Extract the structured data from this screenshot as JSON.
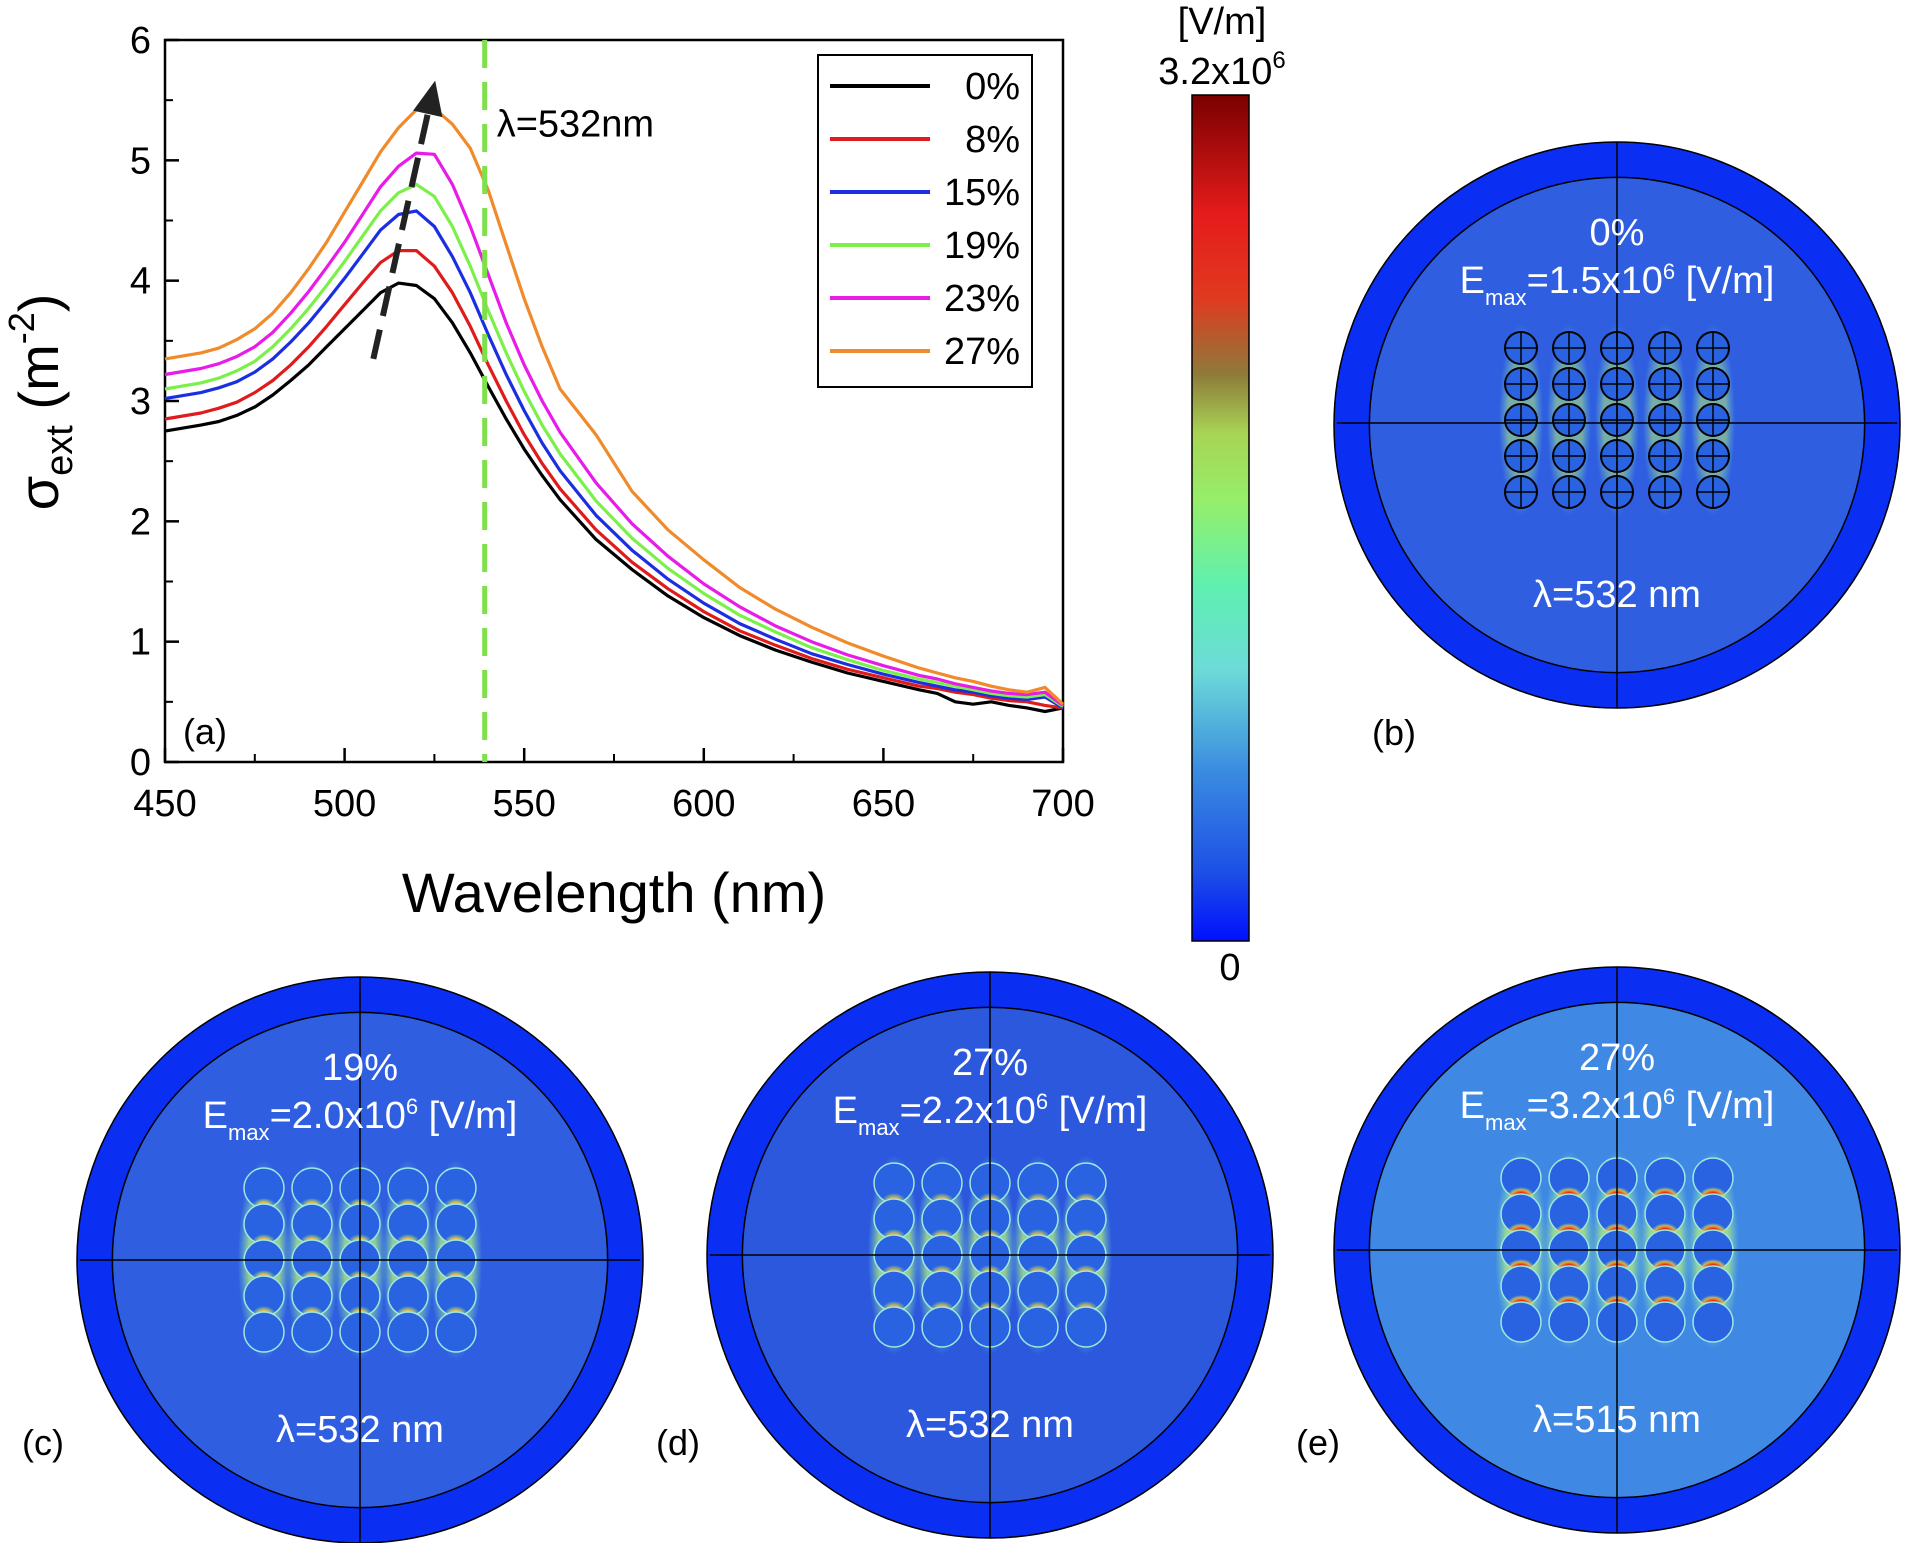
{
  "chart_data": {
    "type": "line",
    "title": "",
    "xlabel": "Wavelength (nm)",
    "ylabel": {
      "base": "σ",
      "sub": "ext",
      "unit_pre": " (m",
      "unit_sup": "-2",
      "unit_post": ")"
    },
    "xlim": [
      450,
      700
    ],
    "ylim": [
      0,
      6
    ],
    "xticks": [
      "450",
      "500",
      "550",
      "600",
      "650",
      "700"
    ],
    "yticks": [
      "0",
      "1",
      "2",
      "3",
      "4",
      "5",
      "6"
    ],
    "x": [
      450,
      460,
      465,
      470,
      475,
      480,
      485,
      490,
      495,
      500,
      505,
      510,
      515,
      520,
      525,
      530,
      535,
      540,
      545,
      550,
      555,
      560,
      570,
      580,
      590,
      600,
      610,
      620,
      630,
      640,
      650,
      660,
      665,
      670,
      675,
      680,
      685,
      690,
      695,
      700
    ],
    "series": [
      {
        "name": "0%",
        "color": "#000000",
        "values": [
          2.75,
          2.8,
          2.83,
          2.88,
          2.95,
          3.05,
          3.17,
          3.3,
          3.45,
          3.6,
          3.75,
          3.9,
          3.98,
          3.96,
          3.85,
          3.65,
          3.4,
          3.12,
          2.85,
          2.6,
          2.38,
          2.18,
          1.85,
          1.6,
          1.38,
          1.2,
          1.05,
          0.93,
          0.83,
          0.74,
          0.67,
          0.6,
          0.57,
          0.5,
          0.48,
          0.5,
          0.47,
          0.45,
          0.42,
          0.45
        ]
      },
      {
        "name": "8%",
        "color": "#e01b1b",
        "values": [
          2.85,
          2.9,
          2.94,
          2.99,
          3.07,
          3.17,
          3.3,
          3.45,
          3.62,
          3.8,
          3.98,
          4.15,
          4.25,
          4.25,
          4.12,
          3.9,
          3.62,
          3.3,
          3.0,
          2.72,
          2.48,
          2.27,
          1.93,
          1.66,
          1.44,
          1.25,
          1.09,
          0.97,
          0.86,
          0.77,
          0.7,
          0.63,
          0.61,
          0.58,
          0.56,
          0.53,
          0.51,
          0.5,
          0.47,
          0.45
        ]
      },
      {
        "name": "15%",
        "color": "#1b2fe0",
        "values": [
          3.02,
          3.07,
          3.11,
          3.16,
          3.24,
          3.35,
          3.49,
          3.65,
          3.83,
          4.02,
          4.22,
          4.42,
          4.55,
          4.58,
          4.45,
          4.2,
          3.9,
          3.55,
          3.22,
          2.92,
          2.65,
          2.42,
          2.05,
          1.76,
          1.52,
          1.32,
          1.15,
          1.02,
          0.9,
          0.81,
          0.73,
          0.66,
          0.63,
          0.6,
          0.58,
          0.55,
          0.53,
          0.52,
          0.54,
          0.45
        ]
      },
      {
        "name": "19%",
        "color": "#7cf04a",
        "values": [
          3.1,
          3.15,
          3.19,
          3.25,
          3.33,
          3.45,
          3.6,
          3.77,
          3.96,
          4.16,
          4.37,
          4.58,
          4.73,
          4.8,
          4.7,
          4.45,
          4.12,
          3.75,
          3.4,
          3.08,
          2.8,
          2.56,
          2.17,
          1.86,
          1.61,
          1.4,
          1.22,
          1.08,
          0.95,
          0.85,
          0.76,
          0.69,
          0.66,
          0.63,
          0.6,
          0.57,
          0.55,
          0.54,
          0.56,
          0.46
        ]
      },
      {
        "name": "23%",
        "color": "#e81be8",
        "values": [
          3.22,
          3.27,
          3.31,
          3.37,
          3.45,
          3.57,
          3.73,
          3.91,
          4.11,
          4.32,
          4.55,
          4.78,
          4.95,
          5.06,
          5.05,
          4.8,
          4.45,
          4.05,
          3.65,
          3.3,
          3.0,
          2.74,
          2.32,
          1.98,
          1.71,
          1.48,
          1.29,
          1.13,
          1.0,
          0.89,
          0.8,
          0.72,
          0.69,
          0.65,
          0.62,
          0.59,
          0.57,
          0.56,
          0.58,
          0.47
        ]
      },
      {
        "name": "27%",
        "color": "#f08a2a",
        "values": [
          3.35,
          3.4,
          3.44,
          3.51,
          3.6,
          3.73,
          3.9,
          4.1,
          4.32,
          4.57,
          4.82,
          5.07,
          5.27,
          5.42,
          5.43,
          5.3,
          5.1,
          4.75,
          4.3,
          3.85,
          3.45,
          3.1,
          2.72,
          2.25,
          1.93,
          1.68,
          1.45,
          1.27,
          1.12,
          0.99,
          0.88,
          0.78,
          0.74,
          0.7,
          0.67,
          0.63,
          0.6,
          0.58,
          0.62,
          0.48
        ]
      }
    ],
    "annotations": [
      {
        "text": "λ=532nm",
        "type": "vline",
        "color": "#7ee04a"
      },
      {
        "type": "arrow",
        "color": "#222222"
      },
      {
        "text": "(a)"
      }
    ],
    "legend": {
      "placement": "top-right"
    }
  },
  "colorbar": {
    "unit": "[V/m]",
    "max": {
      "base": "3.2x10",
      "sup": "6"
    },
    "min": "0"
  },
  "field_maps": [
    {
      "id": "b",
      "label": "(b)",
      "percent": "0%",
      "emax": "1.5",
      "wavelength": "λ=532 nm",
      "background": "#2f5fe0",
      "hotspot": "none"
    },
    {
      "id": "c",
      "label": "(c)",
      "percent": "19%",
      "emax": "2.0",
      "wavelength": "λ=532 nm",
      "background": "#2f5fe0",
      "hotspot": "yellow"
    },
    {
      "id": "d",
      "label": "(d)",
      "percent": "27%",
      "emax": "2.2",
      "wavelength": "λ=532 nm",
      "background": "#2c58de",
      "hotspot": "orange"
    },
    {
      "id": "e",
      "label": "(e)",
      "percent": "27%",
      "emax": "3.2",
      "wavelength": "λ=515 nm",
      "background": "#3f88e4",
      "hotspot": "red"
    }
  ],
  "emax_text": {
    "base": "E",
    "sub": "max",
    "eq": "=",
    "mult": "x10",
    "sup": "6",
    "unit": " [V/m]"
  },
  "colors": {
    "ring": "#0a2ff2",
    "map_line": "#000000",
    "colorbar_top": "#7a0000",
    "colorbar_bottom": "#0010ff"
  }
}
